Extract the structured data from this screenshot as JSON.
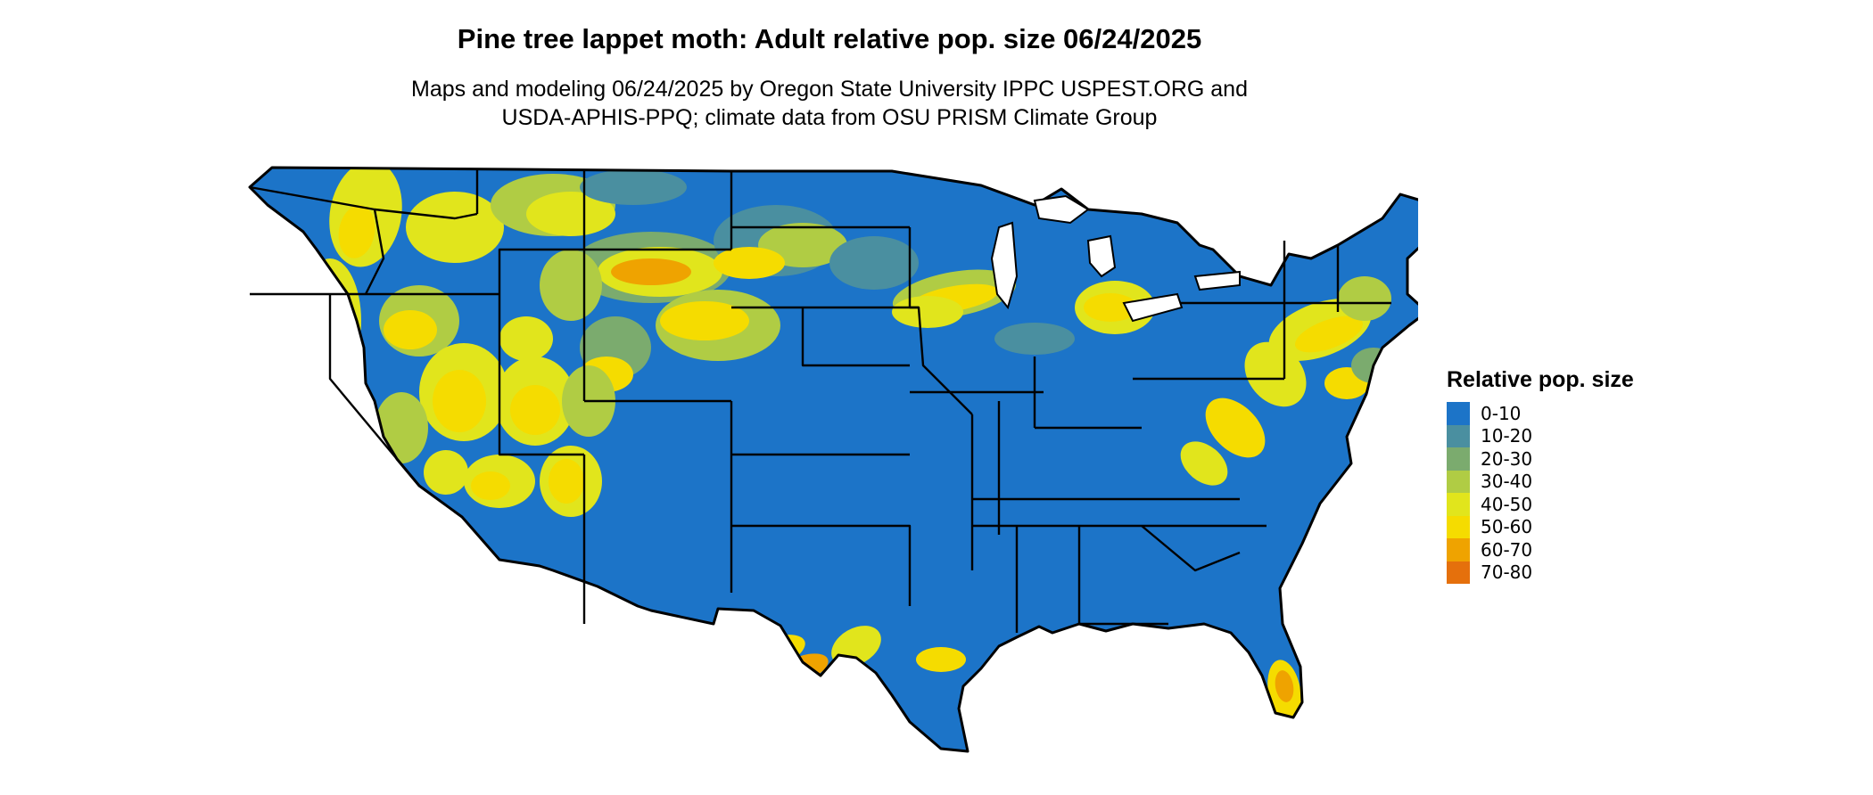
{
  "title": "Pine tree lappet moth: Adult relative pop. size 06/24/2025",
  "subtitle": [
    "Maps and modeling 06/24/2025 by Oregon State University IPPC USPEST.ORG and",
    "USDA-APHIS-PPQ; climate data from OSU PRISM Climate Group"
  ],
  "map": {
    "region": "Contiguous United States",
    "base_class": "0-10",
    "colors": {
      "base": "#1c74c8",
      "border": "#000000"
    }
  },
  "legend": {
    "title": "Relative pop. size",
    "items": [
      {
        "label": "0-10",
        "color": "#1c74c8"
      },
      {
        "label": "10-20",
        "color": "#4a8fa0"
      },
      {
        "label": "20-30",
        "color": "#7bab6e"
      },
      {
        "label": "30-40",
        "color": "#b0cc44"
      },
      {
        "label": "40-50",
        "color": "#e1e51c"
      },
      {
        "label": "50-60",
        "color": "#f5dc00"
      },
      {
        "label": "60-70",
        "color": "#efa300"
      },
      {
        "label": "70-80",
        "color": "#e5700c"
      }
    ]
  }
}
